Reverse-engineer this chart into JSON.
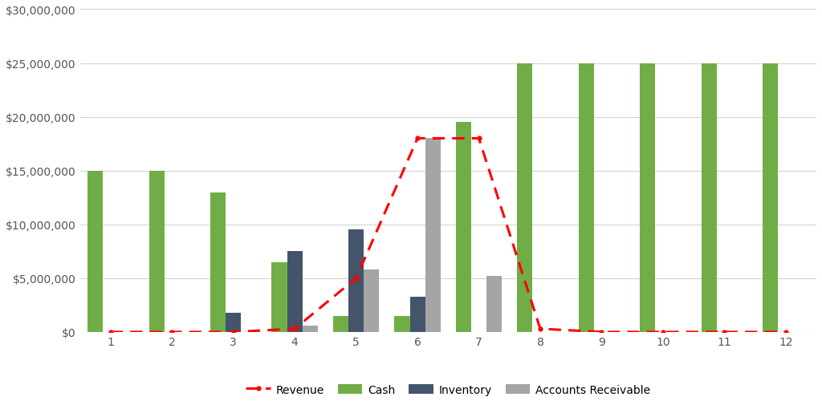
{
  "months": [
    1,
    2,
    3,
    4,
    5,
    6,
    7,
    8,
    9,
    10,
    11,
    12
  ],
  "cash": [
    15000000,
    15000000,
    13000000,
    6500000,
    1500000,
    1500000,
    19500000,
    25000000,
    25000000,
    25000000,
    25000000,
    25000000
  ],
  "inventory": [
    0,
    0,
    1750000,
    7500000,
    9500000,
    3300000,
    0,
    0,
    0,
    0,
    0,
    0
  ],
  "accounts_receivable": [
    0,
    0,
    0,
    600000,
    5800000,
    18000000,
    5200000,
    0,
    0,
    0,
    0,
    0
  ],
  "revenue": [
    0,
    0,
    0,
    300000,
    5000000,
    18000000,
    18000000,
    300000,
    0,
    0,
    0,
    0
  ],
  "cash_color": "#70AD47",
  "inventory_color": "#44546A",
  "ar_color": "#A5A5A5",
  "revenue_color": "#FF0000",
  "background_color": "#FFFFFF",
  "grid_color": "#D3D3D3",
  "ylim": [
    0,
    30000000
  ],
  "ytick_step": 5000000,
  "bar_width": 0.25,
  "legend_labels": [
    "Cash",
    "Inventory",
    "Accounts Receivable",
    "Revenue"
  ]
}
